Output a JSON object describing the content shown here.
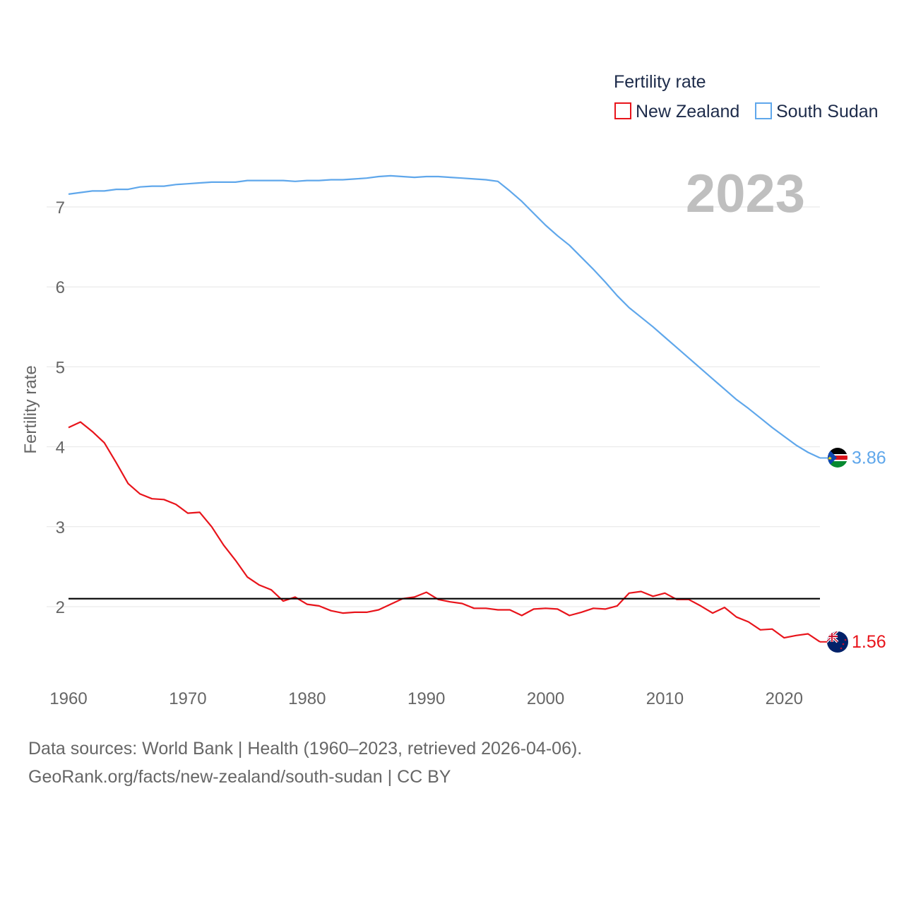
{
  "chart_data": {
    "type": "line",
    "ylabel": "Fertility rate",
    "xlabel": "",
    "year_label": "2023",
    "legend": {
      "title": "Fertility rate",
      "position": "top-right"
    },
    "xlim": [
      1960,
      2023
    ],
    "ylim": [
      1.3,
      7.6
    ],
    "x_ticks": [
      1960,
      1970,
      1980,
      1990,
      2000,
      2010,
      2020
    ],
    "y_ticks": [
      2,
      3,
      4,
      5,
      6,
      7
    ],
    "reference_line": {
      "value": 2.1,
      "color": "#000000"
    },
    "x": [
      1960,
      1961,
      1962,
      1963,
      1964,
      1965,
      1966,
      1967,
      1968,
      1969,
      1970,
      1971,
      1972,
      1973,
      1974,
      1975,
      1976,
      1977,
      1978,
      1979,
      1980,
      1981,
      1982,
      1983,
      1984,
      1985,
      1986,
      1987,
      1988,
      1989,
      1990,
      1991,
      1992,
      1993,
      1994,
      1995,
      1996,
      1997,
      1998,
      1999,
      2000,
      2001,
      2002,
      2003,
      2004,
      2005,
      2006,
      2007,
      2008,
      2009,
      2010,
      2011,
      2012,
      2013,
      2014,
      2015,
      2016,
      2017,
      2018,
      2019,
      2020,
      2021,
      2022,
      2023
    ],
    "series": [
      {
        "name": "New Zealand",
        "color": "#e8141b",
        "end_label": "1.56",
        "values": [
          4.24,
          4.31,
          4.19,
          4.05,
          3.8,
          3.54,
          3.41,
          3.35,
          3.34,
          3.28,
          3.17,
          3.18,
          3.0,
          2.77,
          2.58,
          2.37,
          2.27,
          2.21,
          2.07,
          2.12,
          2.03,
          2.01,
          1.95,
          1.92,
          1.93,
          1.93,
          1.96,
          2.03,
          2.1,
          2.12,
          2.18,
          2.09,
          2.06,
          2.04,
          1.98,
          1.98,
          1.96,
          1.96,
          1.89,
          1.97,
          1.98,
          1.97,
          1.89,
          1.93,
          1.98,
          1.97,
          2.01,
          2.17,
          2.19,
          2.13,
          2.17,
          2.09,
          2.09,
          2.01,
          1.92,
          1.99,
          1.87,
          1.81,
          1.71,
          1.72,
          1.61,
          1.64,
          1.66,
          1.56
        ]
      },
      {
        "name": "South Sudan",
        "color": "#5fa7eb",
        "end_label": "3.86",
        "values": [
          7.16,
          7.18,
          7.2,
          7.2,
          7.22,
          7.22,
          7.25,
          7.26,
          7.26,
          7.28,
          7.29,
          7.3,
          7.31,
          7.31,
          7.31,
          7.33,
          7.33,
          7.33,
          7.33,
          7.32,
          7.33,
          7.33,
          7.34,
          7.34,
          7.35,
          7.36,
          7.38,
          7.39,
          7.38,
          7.37,
          7.38,
          7.38,
          7.37,
          7.36,
          7.35,
          7.34,
          7.32,
          7.2,
          7.07,
          6.92,
          6.77,
          6.64,
          6.52,
          6.37,
          6.22,
          6.06,
          5.89,
          5.74,
          5.62,
          5.5,
          5.37,
          5.24,
          5.11,
          4.98,
          4.85,
          4.72,
          4.59,
          4.48,
          4.36,
          4.24,
          4.13,
          4.02,
          3.93,
          3.86
        ]
      }
    ]
  },
  "footer": {
    "line1": "Data sources: World Bank | Health (1960–2023, retrieved 2026-04-06).",
    "line2": "GeoRank.org/facts/new-zealand/south-sudan | CC BY"
  }
}
